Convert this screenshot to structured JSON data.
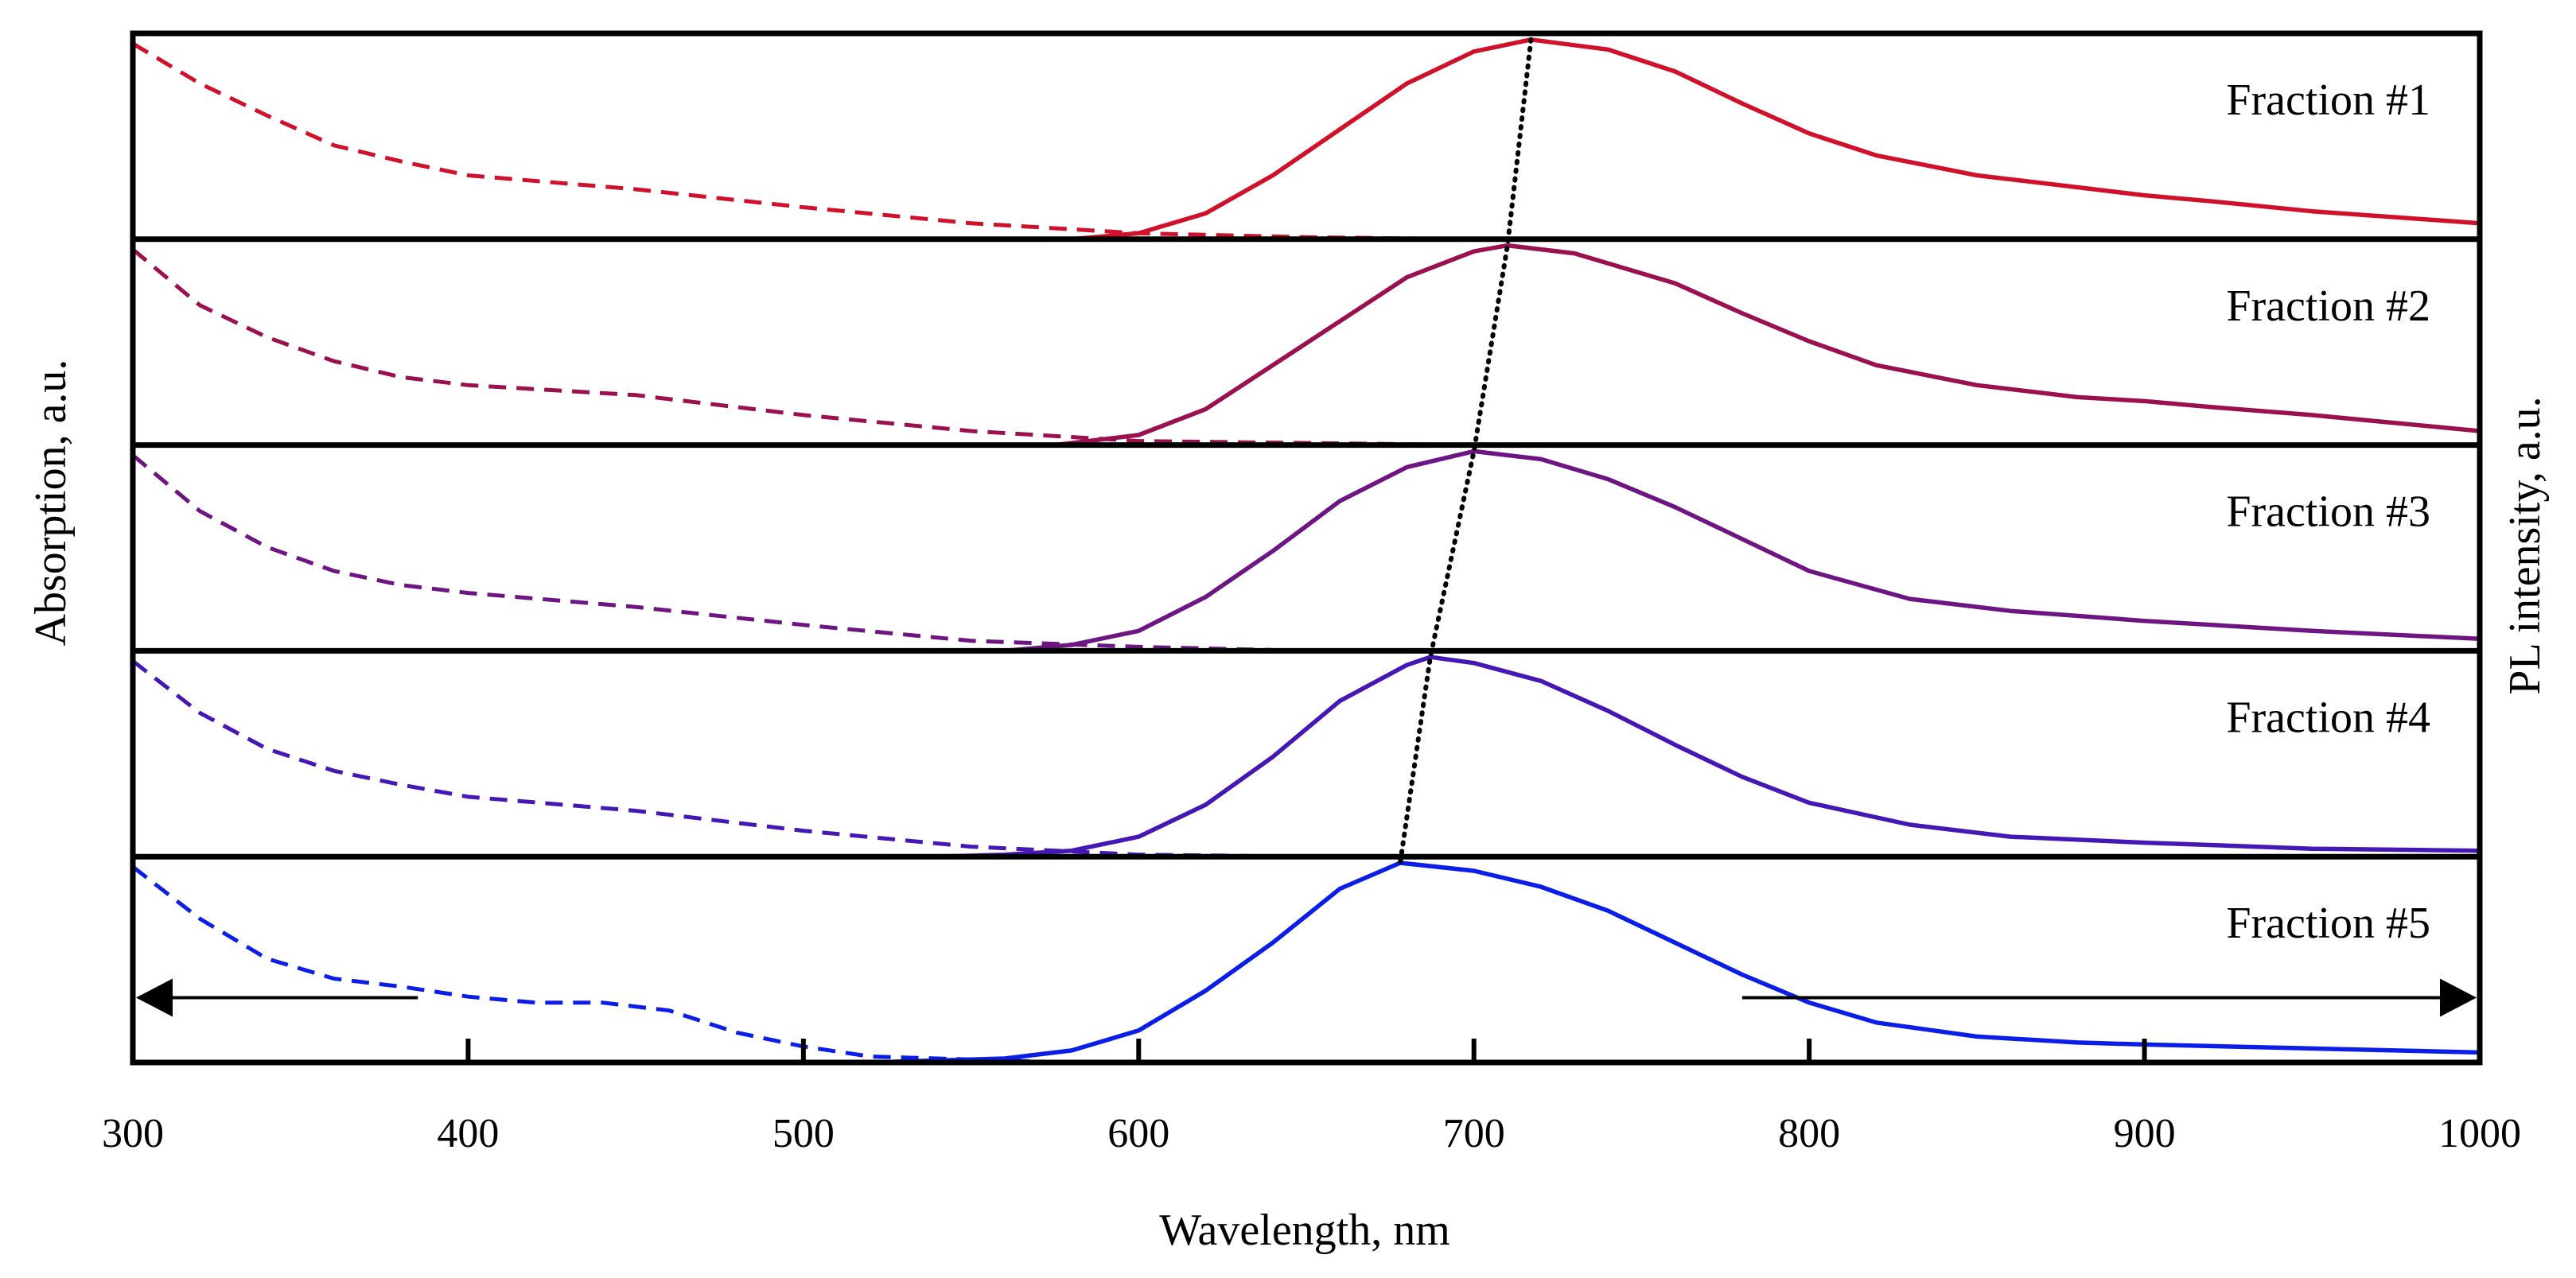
{
  "chart_data": {
    "type": "line",
    "xlabel": "Wavelength, nm",
    "ylabel_left": "Absorption, a.u.",
    "ylabel_right": "PL intensity, a.u.",
    "xlim": [
      300,
      1000
    ],
    "xticks": [
      300,
      400,
      500,
      600,
      700,
      800,
      900,
      1000
    ],
    "panels": [
      {
        "label": "Fraction #1",
        "color": "#d0112b",
        "pl_peak": 717,
        "absorption": {
          "x": [
            300,
            320,
            340,
            360,
            380,
            400,
            450,
            500,
            550,
            600,
            650,
            700,
            750,
            800
          ],
          "y": [
            0.98,
            0.78,
            0.62,
            0.47,
            0.39,
            0.32,
            0.25,
            0.16,
            0.08,
            0.03,
            0.01,
            0,
            0,
            0
          ]
        },
        "pl": {
          "x": [
            580,
            600,
            620,
            640,
            660,
            680,
            700,
            717,
            740,
            760,
            780,
            800,
            820,
            850,
            880,
            900,
            920,
            950,
            1000
          ],
          "y": [
            0,
            0.03,
            0.13,
            0.32,
            0.55,
            0.78,
            0.94,
            1.0,
            0.95,
            0.84,
            0.68,
            0.53,
            0.42,
            0.32,
            0.26,
            0.22,
            0.19,
            0.14,
            0.08
          ]
        }
      },
      {
        "label": "Fraction #2",
        "color": "#9b104e",
        "pl_peak": 710,
        "absorption": {
          "x": [
            300,
            320,
            340,
            360,
            380,
            400,
            450,
            500,
            550,
            600,
            650,
            700,
            750,
            800
          ],
          "y": [
            0.98,
            0.7,
            0.54,
            0.42,
            0.34,
            0.3,
            0.25,
            0.15,
            0.07,
            0.02,
            0.01,
            0,
            0,
            0
          ]
        },
        "pl": {
          "x": [
            575,
            600,
            620,
            640,
            660,
            680,
            700,
            710,
            730,
            760,
            780,
            800,
            820,
            850,
            880,
            900,
            920,
            950,
            1000
          ],
          "y": [
            0,
            0.05,
            0.18,
            0.4,
            0.62,
            0.84,
            0.97,
            1.0,
            0.96,
            0.81,
            0.66,
            0.52,
            0.4,
            0.3,
            0.24,
            0.22,
            0.19,
            0.15,
            0.07
          ]
        }
      },
      {
        "label": "Fraction #3",
        "color": "#6d1583",
        "pl_peak": 700,
        "absorption": {
          "x": [
            300,
            320,
            340,
            360,
            380,
            400,
            450,
            500,
            550,
            600,
            650,
            700,
            750,
            800
          ],
          "y": [
            0.98,
            0.7,
            0.52,
            0.4,
            0.33,
            0.29,
            0.22,
            0.13,
            0.05,
            0.02,
            0,
            0,
            0,
            0
          ]
        },
        "pl": {
          "x": [
            560,
            580,
            600,
            620,
            640,
            660,
            680,
            700,
            720,
            740,
            760,
            780,
            800,
            830,
            860,
            900,
            950,
            1000
          ],
          "y": [
            0,
            0.03,
            0.1,
            0.27,
            0.5,
            0.75,
            0.92,
            1.0,
            0.96,
            0.86,
            0.72,
            0.56,
            0.4,
            0.26,
            0.2,
            0.15,
            0.1,
            0.06
          ]
        }
      },
      {
        "label": "Fraction #4",
        "color": "#4517b5",
        "pl_peak": 687,
        "absorption": {
          "x": [
            300,
            320,
            340,
            360,
            380,
            400,
            450,
            500,
            550,
            600,
            650,
            700,
            750,
            800
          ],
          "y": [
            0.98,
            0.72,
            0.54,
            0.43,
            0.36,
            0.3,
            0.23,
            0.13,
            0.05,
            0.01,
            0,
            0,
            0,
            0
          ]
        },
        "pl": {
          "x": [
            540,
            560,
            580,
            600,
            620,
            640,
            660,
            680,
            687,
            700,
            720,
            740,
            760,
            780,
            800,
            830,
            860,
            900,
            950,
            1000
          ],
          "y": [
            0,
            0.01,
            0.03,
            0.1,
            0.26,
            0.5,
            0.78,
            0.96,
            1.0,
            0.97,
            0.88,
            0.73,
            0.56,
            0.4,
            0.27,
            0.16,
            0.1,
            0.07,
            0.04,
            0.03
          ]
        }
      },
      {
        "label": "Fraction #5",
        "color": "#0a1ee8",
        "pl_peak": 678,
        "absorption": {
          "x": [
            300,
            320,
            340,
            360,
            380,
            400,
            420,
            440,
            460,
            480,
            500,
            520,
            540,
            560,
            580,
            600,
            650,
            700,
            750,
            800
          ],
          "y": [
            0.98,
            0.72,
            0.52,
            0.42,
            0.38,
            0.33,
            0.3,
            0.3,
            0.26,
            0.15,
            0.08,
            0.03,
            0.02,
            0.01,
            0,
            0,
            0,
            0,
            0,
            0
          ]
        },
        "pl": {
          "x": [
            520,
            540,
            560,
            580,
            600,
            620,
            640,
            660,
            678,
            700,
            720,
            740,
            760,
            780,
            800,
            820,
            850,
            880,
            900,
            950,
            1000
          ],
          "y": [
            0,
            0.01,
            0.02,
            0.06,
            0.16,
            0.36,
            0.6,
            0.87,
            1.0,
            0.96,
            0.88,
            0.76,
            0.6,
            0.44,
            0.3,
            0.2,
            0.13,
            0.1,
            0.09,
            0.07,
            0.05
          ]
        }
      }
    ]
  }
}
